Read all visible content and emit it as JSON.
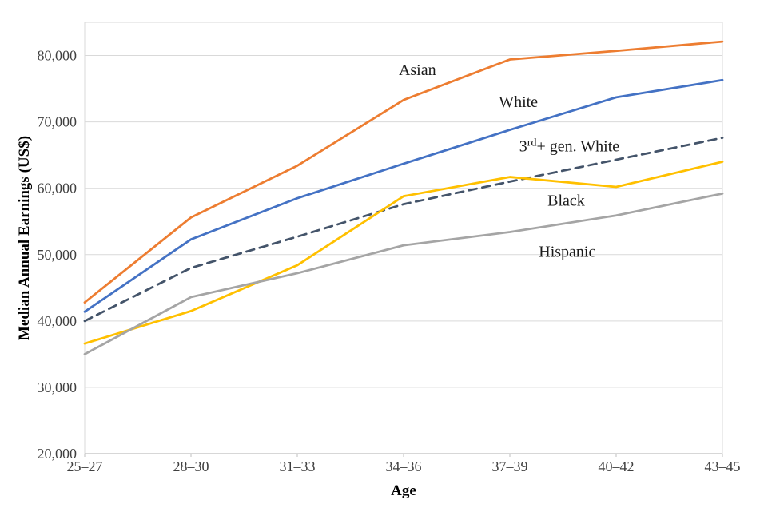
{
  "chart_data": {
    "type": "line",
    "title": "",
    "xlabel": "Age",
    "ylabel": "Median Annual Earnings (US$)",
    "categories": [
      "25–27",
      "28–30",
      "31–33",
      "34–36",
      "37–39",
      "40–42",
      "43–45"
    ],
    "series": [
      {
        "name": "Asian",
        "color": "#ED7D31",
        "dash": null,
        "values": [
          42800,
          55600,
          63400,
          73300,
          79400,
          80700,
          82100
        ]
      },
      {
        "name": "White",
        "color": "#4472C4",
        "dash": null,
        "values": [
          41400,
          52300,
          58500,
          63700,
          68800,
          73700,
          76300
        ]
      },
      {
        "name": "3rd+ gen. White",
        "color": "#44546A",
        "dash": "10 7",
        "values": [
          40000,
          48000,
          52700,
          57600,
          61000,
          64300,
          67600
        ]
      },
      {
        "name": "Black",
        "color": "#FFC000",
        "dash": null,
        "values": [
          36600,
          41500,
          48400,
          58800,
          61700,
          60200,
          64000
        ]
      },
      {
        "name": "Hispanic",
        "color": "#A5A5A5",
        "dash": null,
        "values": [
          35000,
          43600,
          47200,
          51400,
          53400,
          55900,
          59200
        ]
      }
    ],
    "ylim": [
      20000,
      85000
    ],
    "yticks": [
      20000,
      30000,
      40000,
      50000,
      60000,
      70000,
      80000
    ],
    "grid": "horizontal",
    "legend": "inline-annotations",
    "annotations": [
      {
        "text": "Asian",
        "series": "Asian",
        "x": 3.13,
        "y": 77900
      },
      {
        "text": "White",
        "series": "White",
        "x": 4.08,
        "y": 73100
      },
      {
        "text": "3rd+ gen. White",
        "series": "3rd+ gen. White",
        "x": 4.56,
        "y": 66400,
        "parts": [
          {
            "t": "3"
          },
          {
            "t": "rd",
            "sup": true
          },
          {
            "t": "+ gen. White"
          }
        ]
      },
      {
        "text": "Black",
        "series": "Black",
        "x": 4.53,
        "y": 58200
      },
      {
        "text": "Hispanic",
        "series": "Hispanic",
        "x": 4.54,
        "y": 50500
      }
    ],
    "frame_color": "#D9D9D9",
    "gridline_color": "#D9D9D9",
    "axis_line_color": "#BFBFBF"
  }
}
